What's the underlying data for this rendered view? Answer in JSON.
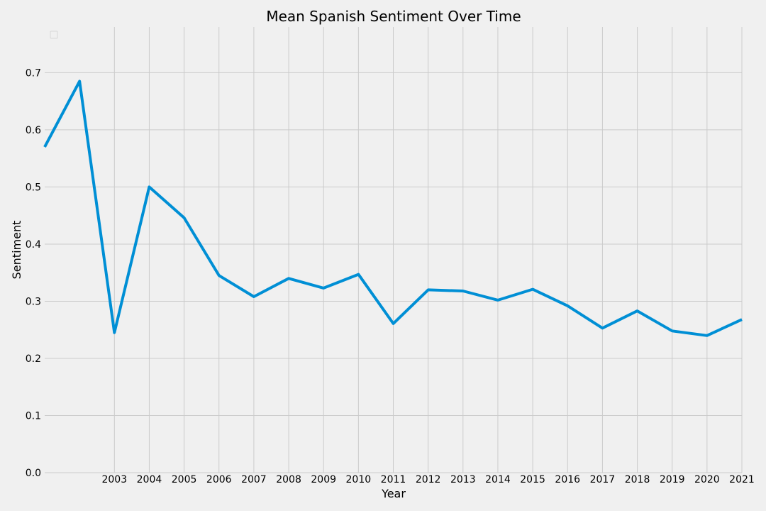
{
  "chart_data": {
    "type": "line",
    "title": "Mean Spanish Sentiment Over Time",
    "xlabel": "Year",
    "ylabel": "Sentiment",
    "x": [
      2001,
      2002,
      2003,
      2004,
      2005,
      2006,
      2007,
      2008,
      2009,
      2010,
      2011,
      2012,
      2013,
      2014,
      2015,
      2016,
      2017,
      2018,
      2019,
      2020,
      2021
    ],
    "xticks": [
      "2003",
      "2004",
      "2005",
      "2006",
      "2007",
      "2008",
      "2009",
      "2010",
      "2011",
      "2012",
      "2013",
      "2014",
      "2015",
      "2016",
      "2017",
      "2018",
      "2019",
      "2020",
      "2021"
    ],
    "yticks": [
      "0.0",
      "0.1",
      "0.2",
      "0.3",
      "0.4",
      "0.5",
      "0.6",
      "0.7"
    ],
    "xlim": [
      2001,
      2021
    ],
    "ylim": [
      0,
      0.78
    ],
    "series": [
      {
        "values": [
          0.57,
          0.685,
          0.245,
          0.5,
          0.446,
          0.345,
          0.308,
          0.34,
          0.323,
          0.347,
          0.261,
          0.32,
          0.318,
          0.302,
          0.321,
          0.292,
          0.253,
          0.283,
          0.248,
          0.24,
          0.268
        ],
        "color": "#008fd5"
      }
    ],
    "grid": true,
    "legend": "top-left (empty)",
    "colors": {
      "background": "#f0f0f0",
      "grid": "#cbcbcb",
      "line": "#008fd5"
    }
  }
}
